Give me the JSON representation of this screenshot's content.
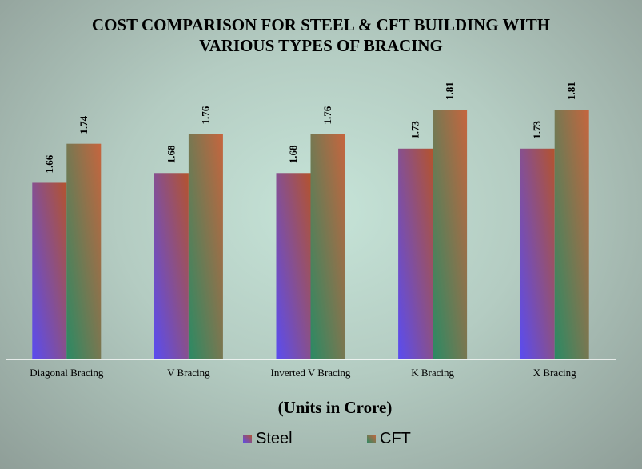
{
  "chart_data": {
    "type": "bar",
    "title_lines": [
      "COST COMPARISON FOR STEEL & CFT BUILDING WITH",
      "VARIOUS TYPES OF BRACING"
    ],
    "categories": [
      "Diagonal Bracing",
      "V Bracing",
      "Inverted V Bracing",
      "K Bracing",
      "X Bracing"
    ],
    "series": [
      {
        "name": "Steel",
        "values": [
          1.66,
          1.68,
          1.68,
          1.73,
          1.73
        ],
        "colors": [
          "#5a4cf0",
          "#b4532e"
        ]
      },
      {
        "name": "CFT",
        "values": [
          1.74,
          1.76,
          1.76,
          1.81,
          1.81
        ],
        "colors": [
          "#2a8a64",
          "#c6653e"
        ]
      }
    ],
    "xlabel": "(Units in Crore)",
    "ylabel": "",
    "ylim": [
      1.3,
      1.81
    ],
    "grid": false,
    "legend": "bottom"
  }
}
